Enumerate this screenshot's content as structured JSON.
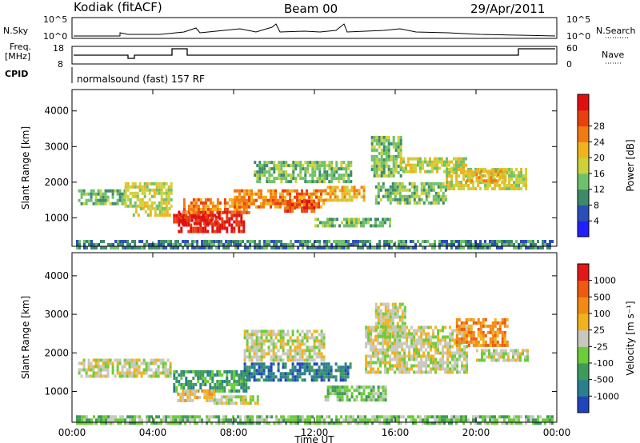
{
  "header": {
    "station": "Kodiak (fitACF)",
    "beam": "Beam 00",
    "date": "29/Apr/2011"
  },
  "summary_panel": {
    "left_top_label": "N.Sky",
    "left_mid_label": "Freq.",
    "left_mid_unit": "[MHz]",
    "left_bottom_label": "CPID",
    "right_top_label": "N.Search",
    "right_mid_label": "Nave",
    "nsky_ticks": [
      "10^5",
      "10^0"
    ],
    "freq_ticks": [
      "18",
      "8"
    ],
    "nave_ticks": [
      "60",
      "0"
    ],
    "cpid_text": "normalsound (fast) 157 RF"
  },
  "chart_data": [
    {
      "type": "heatmap",
      "name": "power",
      "xlabel": "",
      "ylabel": "Slant Range [km]",
      "x_ticks": [
        "00:00",
        "04:00",
        "08:00",
        "12:00",
        "16:00",
        "20:00",
        "00:00"
      ],
      "y_ticks": [
        "1000",
        "2000",
        "3000",
        "4000"
      ],
      "xlim_hours": [
        0,
        24
      ],
      "ylim_km": [
        200,
        4600
      ],
      "colorbar": {
        "label": "Power [dB]",
        "ticks": [
          "4",
          "8",
          "12",
          "16",
          "20",
          "24",
          "28"
        ],
        "colors": [
          "#1f1fff",
          "#2a4fb8",
          "#3c8a6a",
          "#6ec06a",
          "#cbd23a",
          "#f2b21c",
          "#f27a12",
          "#e84010",
          "#e01010"
        ]
      },
      "regions": [
        {
          "t0": 0.3,
          "t1": 2.6,
          "r0": 1400,
          "r1": 1800,
          "level": 3
        },
        {
          "t0": 2.6,
          "t1": 4.9,
          "r0": 1350,
          "r1": 2000,
          "level": 4
        },
        {
          "t0": 3.0,
          "t1": 4.8,
          "r0": 1100,
          "r1": 1300,
          "level": 4
        },
        {
          "t0": 5.0,
          "t1": 8.5,
          "r0": 650,
          "r1": 1200,
          "level": 8
        },
        {
          "t0": 5.3,
          "t1": 7.3,
          "r0": 800,
          "r1": 1150,
          "level": 8
        },
        {
          "t0": 5.5,
          "t1": 8.8,
          "r0": 1150,
          "r1": 1550,
          "level": 6
        },
        {
          "t0": 8.0,
          "t1": 12.5,
          "r0": 1300,
          "r1": 1800,
          "level": 6
        },
        {
          "t0": 10.5,
          "t1": 12.0,
          "r0": 1150,
          "r1": 1500,
          "level": 7
        },
        {
          "t0": 9.0,
          "t1": 13.8,
          "r0": 2000,
          "r1": 2600,
          "level": 3
        },
        {
          "t0": 12.5,
          "t1": 14.5,
          "r0": 1500,
          "r1": 1900,
          "level": 5
        },
        {
          "t0": 12.0,
          "t1": 15.8,
          "r0": 750,
          "r1": 1000,
          "level": 3
        },
        {
          "t0": 14.8,
          "t1": 16.3,
          "r0": 2200,
          "r1": 3300,
          "level": 3
        },
        {
          "t0": 16.0,
          "t1": 19.5,
          "r0": 2300,
          "r1": 2700,
          "level": 4
        },
        {
          "t0": 18.5,
          "t1": 22.5,
          "r0": 1800,
          "r1": 2400,
          "level": 4
        },
        {
          "t0": 19.5,
          "t1": 21.5,
          "r0": 2000,
          "r1": 2350,
          "level": 5
        },
        {
          "t0": 15.0,
          "t1": 18.5,
          "r0": 1400,
          "r1": 2000,
          "level": 3
        },
        {
          "t0": 0.2,
          "t1": 23.8,
          "r0": 200,
          "r1": 380,
          "level": 2
        }
      ]
    },
    {
      "type": "heatmap",
      "name": "velocity",
      "xlabel": "Time UT",
      "ylabel": "Slant Range [km]",
      "x_ticks": [
        "00:00",
        "04:00",
        "08:00",
        "12:00",
        "16:00",
        "20:00",
        "00:00"
      ],
      "y_ticks": [
        "1000",
        "2000",
        "3000",
        "4000"
      ],
      "xlim_hours": [
        0,
        24
      ],
      "ylim_km": [
        200,
        4600
      ],
      "colorbar": {
        "label": "Velocity [m s⁻¹]",
        "ticks": [
          "1000",
          "500",
          "100",
          "25",
          "-25",
          "-100",
          "-500",
          "-1000"
        ],
        "colors": [
          "#2244bb",
          "#2a7f8f",
          "#3e9a5a",
          "#6ccc3a",
          "#c8c8c0",
          "#f2b21c",
          "#f28a14",
          "#ee5a10",
          "#e01818"
        ]
      },
      "regions": [
        {
          "t0": 0.3,
          "t1": 4.9,
          "r0": 1400,
          "r1": 1850,
          "level": 4
        },
        {
          "t0": 5.0,
          "t1": 8.8,
          "r0": 1050,
          "r1": 1550,
          "level": 2
        },
        {
          "t0": 5.2,
          "t1": 7.0,
          "r0": 800,
          "r1": 1050,
          "level": 5
        },
        {
          "t0": 7.0,
          "t1": 9.2,
          "r0": 700,
          "r1": 900,
          "level": 4
        },
        {
          "t0": 8.5,
          "t1": 13.8,
          "r0": 1300,
          "r1": 1750,
          "level": 1
        },
        {
          "t0": 8.5,
          "t1": 12.5,
          "r0": 1800,
          "r1": 2600,
          "level": 4
        },
        {
          "t0": 12.5,
          "t1": 15.5,
          "r0": 800,
          "r1": 1150,
          "level": 3
        },
        {
          "t0": 14.5,
          "t1": 19.5,
          "r0": 1500,
          "r1": 2700,
          "level": 4
        },
        {
          "t0": 15.0,
          "t1": 16.5,
          "r0": 2400,
          "r1": 3300,
          "level": 4
        },
        {
          "t0": 19.0,
          "t1": 21.5,
          "r0": 2200,
          "r1": 2900,
          "level": 6
        },
        {
          "t0": 20.0,
          "t1": 22.5,
          "r0": 1800,
          "r1": 2100,
          "level": 4
        },
        {
          "t0": 0.2,
          "t1": 23.8,
          "r0": 200,
          "r1": 380,
          "level": 3
        }
      ]
    }
  ]
}
